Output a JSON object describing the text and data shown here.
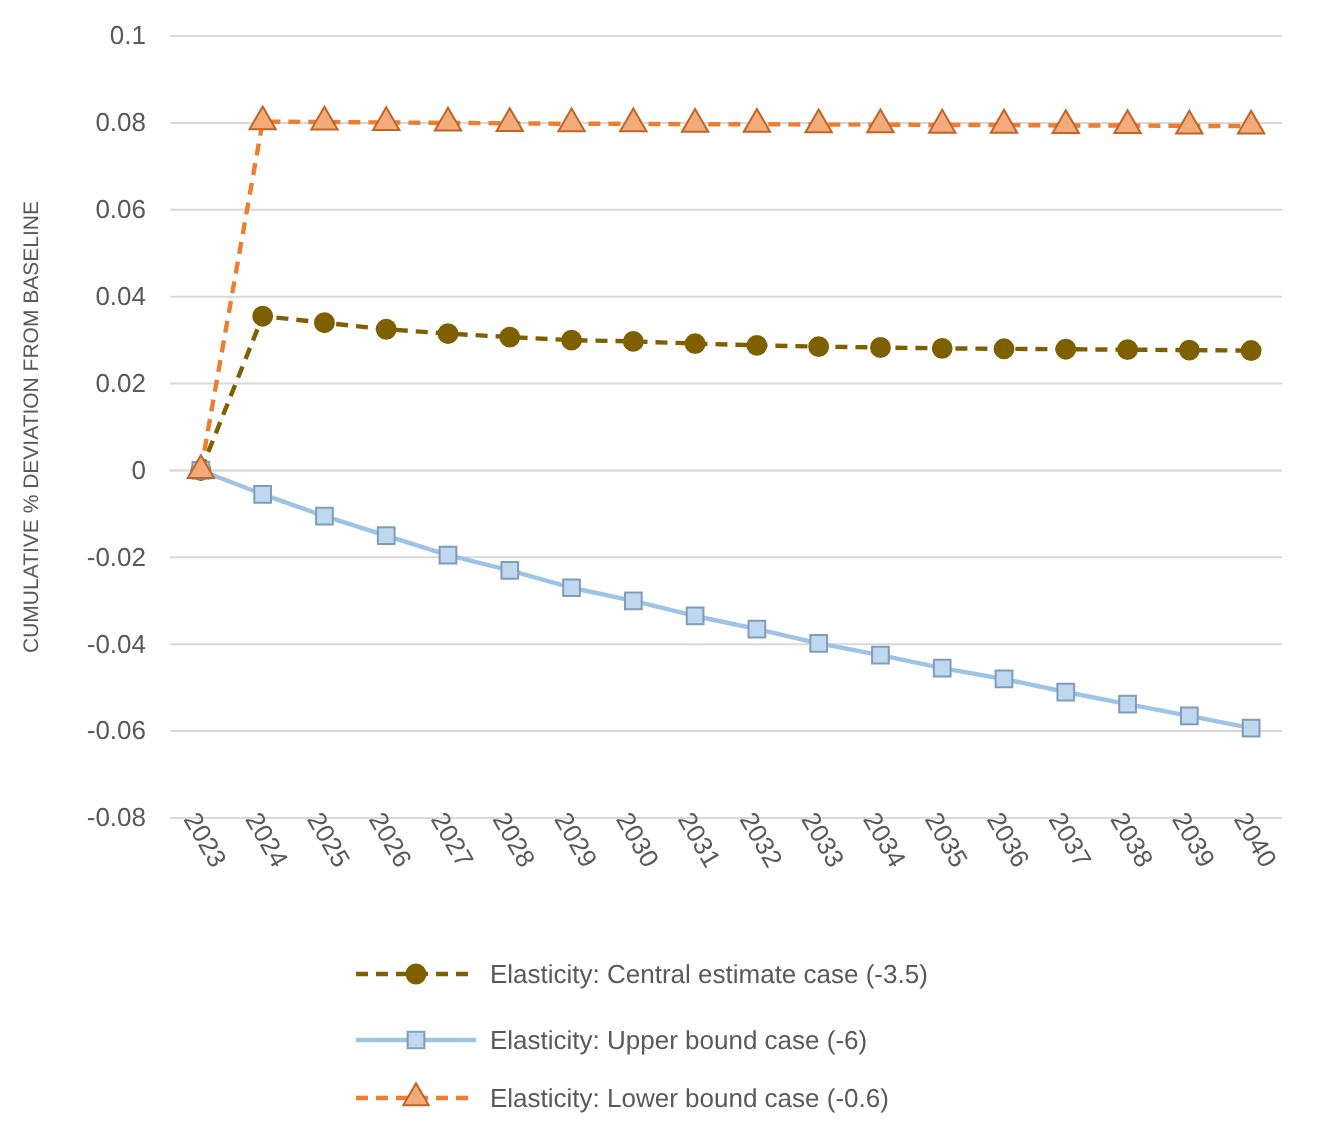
{
  "chart_data": {
    "type": "line",
    "ylabel": "CUMULATIVE % DEVIATION FROM BASELINE",
    "categories": [
      "2023",
      "2024",
      "2025",
      "2026",
      "2027",
      "2028",
      "2029",
      "2030",
      "2031",
      "2032",
      "2033",
      "2034",
      "2035",
      "2036",
      "2037",
      "2038",
      "2039",
      "2040"
    ],
    "series": [
      {
        "name": "Elasticity: Central estimate case (-3.5)",
        "color": "#7f6000",
        "marker": "circle",
        "line_style": "dashed",
        "values": [
          0,
          0.0355,
          0.034,
          0.0325,
          0.0315,
          0.0307,
          0.03,
          0.0297,
          0.0292,
          0.0288,
          0.0285,
          0.0283,
          0.0281,
          0.028,
          0.0279,
          0.0278,
          0.0277,
          0.0276
        ]
      },
      {
        "name": "Elasticity: Upper bound case (-6)",
        "color": "#9dc3e6",
        "marker": "square",
        "line_style": "solid",
        "values": [
          0,
          -0.0055,
          -0.0105,
          -0.015,
          -0.0195,
          -0.023,
          -0.027,
          -0.03,
          -0.0335,
          -0.0365,
          -0.0398,
          -0.0425,
          -0.0455,
          -0.048,
          -0.051,
          -0.0538,
          -0.0565,
          -0.0593
        ]
      },
      {
        "name": "Elasticity: Lower bound case (-0.6)",
        "color": "#ed7d31",
        "marker": "triangle",
        "line_style": "dashed",
        "values": [
          0,
          0.0803,
          0.0802,
          0.0801,
          0.08,
          0.0799,
          0.0798,
          0.0798,
          0.0797,
          0.0797,
          0.0796,
          0.0796,
          0.0795,
          0.0795,
          0.0794,
          0.0794,
          0.0793,
          0.0793
        ]
      }
    ],
    "ylim": [
      -0.08,
      0.1
    ],
    "yticks": [
      -0.08,
      -0.06,
      -0.04,
      -0.02,
      0,
      0.02,
      0.04,
      0.06,
      0.08,
      0.1
    ],
    "grid": "y",
    "legend": "bottom"
  }
}
